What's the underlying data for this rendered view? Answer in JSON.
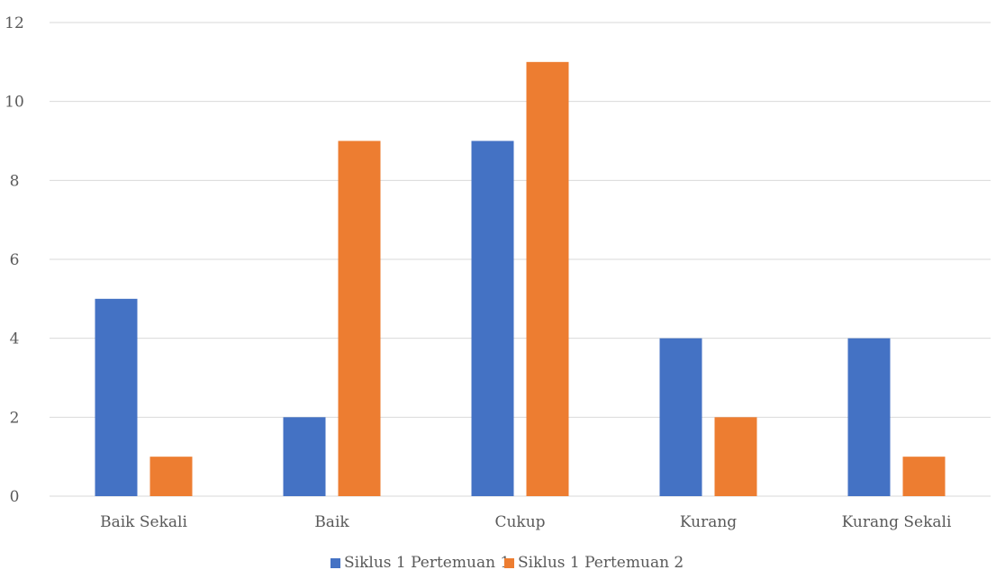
{
  "chart_data": {
    "type": "bar",
    "title": "",
    "xlabel": "",
    "ylabel": "",
    "categories": [
      "Baik Sekali",
      "Baik",
      "Cukup",
      "Kurang",
      "Kurang Sekali"
    ],
    "series": [
      {
        "name": "Siklus 1 Pertemuan 1",
        "values": [
          5,
          2,
          9,
          4,
          4
        ],
        "color": "#4472C4"
      },
      {
        "name": "Siklus 1 Pertemuan 2",
        "values": [
          1,
          9,
          11,
          2,
          1
        ],
        "color": "#ED7D31"
      }
    ],
    "ylim": [
      0,
      12
    ],
    "yticks": [
      0,
      2,
      4,
      6,
      8,
      10,
      12
    ],
    "grid": true,
    "legend_position": "bottom",
    "gridline_color": "#D9D9D9",
    "text_color": "#595959"
  }
}
